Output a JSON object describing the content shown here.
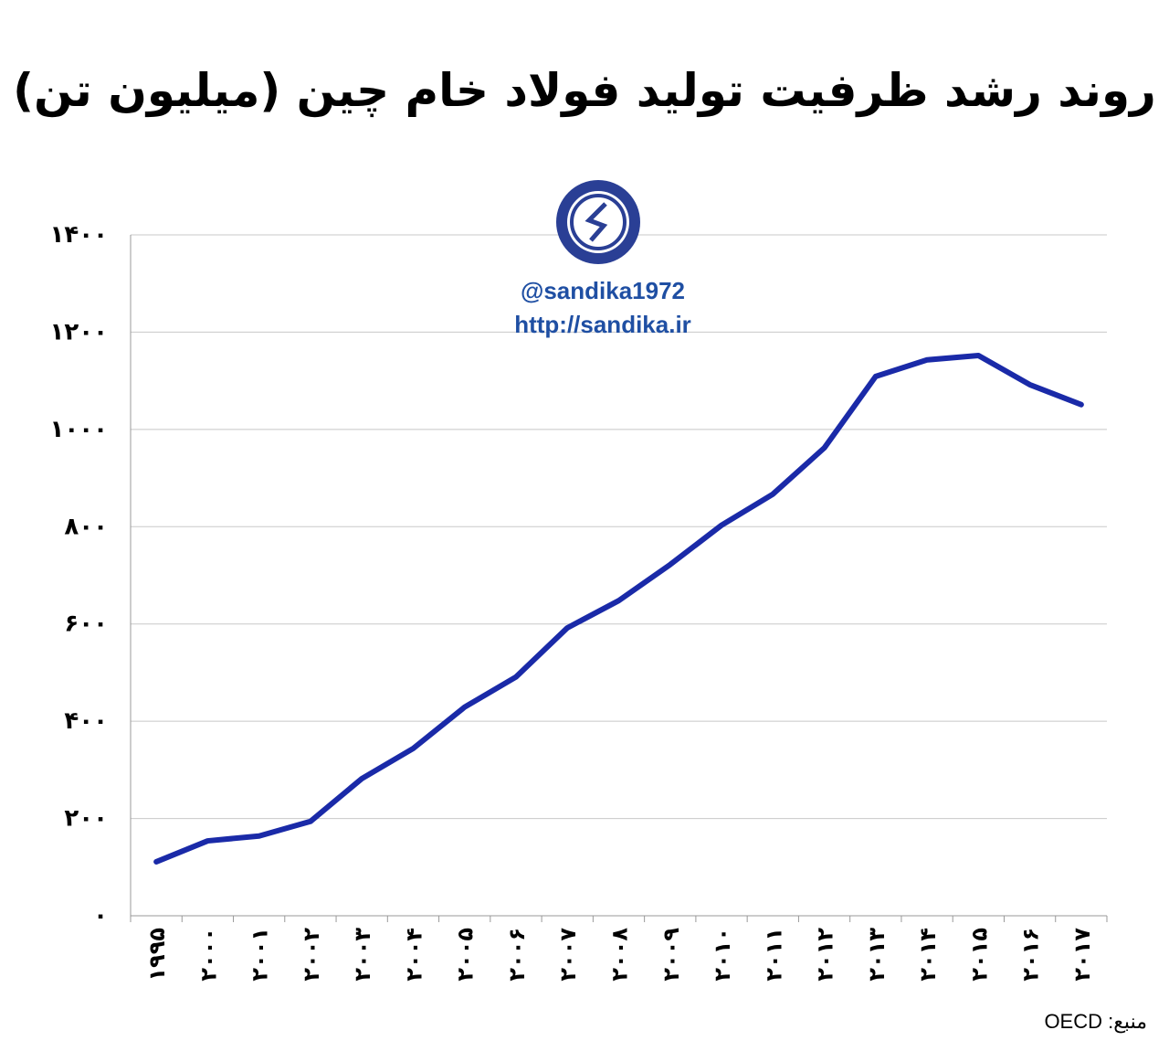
{
  "chart_data": {
    "type": "line",
    "title": "روند رشد ظرفیت تولید فولاد خام چین (میلیون تن)",
    "categories": [
      "۱۹۹۵",
      "۲۰۰۰",
      "۲۰۰۱",
      "۲۰۰۲",
      "۲۰۰۳",
      "۲۰۰۴",
      "۲۰۰۵",
      "۲۰۰۶",
      "۲۰۰۷",
      "۲۰۰۸",
      "۲۰۰۹",
      "۲۰۱۰",
      "۲۰۱۱",
      "۲۰۱۲",
      "۲۰۱۳",
      "۲۰۱۴",
      "۲۰۱۵",
      "۲۰۱۶",
      "۲۰۱۷"
    ],
    "values": [
      111,
      154,
      164,
      194,
      282,
      344,
      429,
      491,
      592,
      648,
      722,
      803,
      867,
      962,
      1109,
      1143,
      1152,
      1092,
      1051
    ],
    "ylim": [
      0,
      1400
    ],
    "yticks": [
      0,
      200,
      400,
      600,
      800,
      1000,
      1200,
      1400
    ],
    "ytick_labels": [
      "۰",
      "۲۰۰",
      "۴۰۰",
      "۶۰۰",
      "۸۰۰",
      "۱۰۰۰",
      "۱۲۰۰",
      "۱۴۰۰"
    ],
    "grid": true,
    "line_color": "#1a2aa8"
  },
  "watermark": {
    "handle": "@sandika1972",
    "url": "http://sandika.ir",
    "color": "#1f4fa3",
    "logo_text": "sandika"
  },
  "source": "منبع: OECD"
}
